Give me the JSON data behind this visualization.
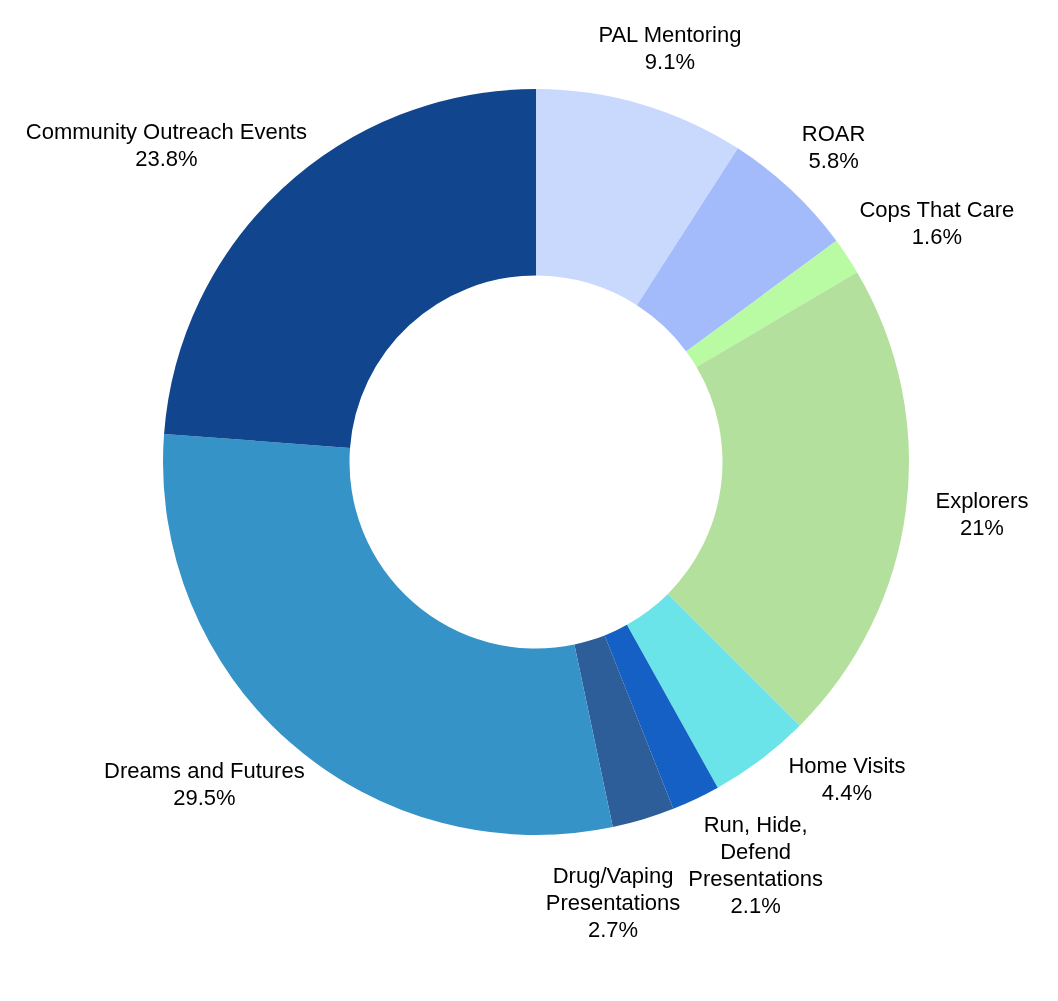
{
  "chart_data": {
    "type": "donut",
    "categories": [
      "PAL Mentoring",
      "ROAR",
      "Cops That Care",
      "Explorers",
      "Home Visits",
      "Run, Hide, Defend Presentations",
      "Drug/Vaping Presentations",
      "Dreams and Futures",
      "Community Outreach Events"
    ],
    "values": [
      9.1,
      5.8,
      1.6,
      21,
      4.4,
      2.1,
      2.7,
      29.5,
      23.8
    ],
    "value_labels": [
      "9.1%",
      "5.8%",
      "1.6%",
      "21%",
      "4.4%",
      "2.1%",
      "2.7%",
      "29.5%",
      "23.8%"
    ],
    "colors": [
      "#c9d9fd",
      "#a3bbfb",
      "#b9fba3",
      "#b3e19d",
      "#6ae4e8",
      "#1560c4",
      "#2e5e99",
      "#3693c8",
      "#11468e"
    ],
    "legend": false
  }
}
